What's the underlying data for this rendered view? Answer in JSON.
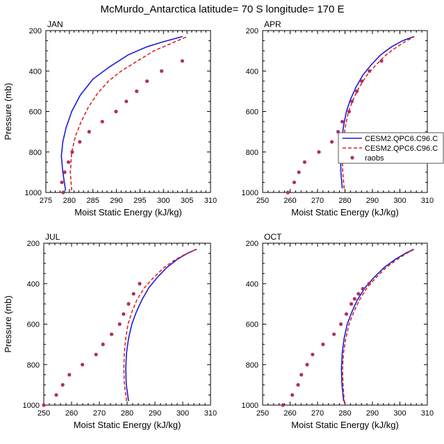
{
  "title": "McMurdo_Antarctica  latitude= 70 S longitude= 170 E",
  "colors": {
    "model_a": "#1a1adb",
    "model_b": "#e02020",
    "raobs": "#b03060",
    "axis": "#000000",
    "legend_border": "#555555"
  },
  "legend": [
    {
      "label": "CESM2.QPC6.C96.C",
      "style": "solid",
      "color": "#1a1adb"
    },
    {
      "label": "CESM2.QPC6.C96.C",
      "style": "dashed",
      "color": "#e02020"
    },
    {
      "label": "raobs",
      "style": "marker",
      "color": "#b03060"
    }
  ],
  "chart_data": [
    {
      "type": "line",
      "panel": "JAN",
      "title": "JAN",
      "xlabel": "Moist Static Energy (kJ/kg)",
      "ylabel": "Pressure (mb)",
      "xlim": [
        275,
        310
      ],
      "ylim": [
        1000,
        200
      ],
      "xticks": [
        275,
        280,
        285,
        290,
        295,
        300,
        305,
        310
      ],
      "yticks": [
        200,
        400,
        600,
        800,
        1000
      ],
      "series": [
        {
          "name": "CESM2.QPC6.C96.C",
          "style": "solid",
          "color": "#1a1adb",
          "x": [
            279.2,
            278.6,
            278.3,
            278.6,
            279.3,
            280.5,
            282.3,
            285.0,
            288.5,
            292.5,
            296.5,
            300.0,
            304.0
          ],
          "y": [
            990,
            900,
            820,
            750,
            680,
            600,
            520,
            440,
            380,
            320,
            280,
            255,
            230
          ]
        },
        {
          "name": "CESM2.QPC6.C96.C",
          "style": "dashed",
          "color": "#e02020",
          "x": [
            280.5,
            280.2,
            280.5,
            281.3,
            282.5,
            284.0,
            286.0,
            288.3,
            291.0,
            294.5,
            298.0,
            302.0,
            305.0
          ],
          "y": [
            990,
            900,
            800,
            720,
            650,
            580,
            510,
            450,
            400,
            350,
            300,
            260,
            230
          ]
        },
        {
          "name": "raobs",
          "style": "marker",
          "color": "#b03060",
          "x": [
            278.7,
            278.4,
            279.0,
            279.8,
            280.6,
            282.2,
            284.2,
            287.0,
            289.9,
            292.1,
            294.3,
            296.5,
            299.6,
            304.0
          ],
          "y": [
            1000,
            950,
            900,
            850,
            800,
            750,
            700,
            650,
            600,
            550,
            500,
            450,
            400,
            350
          ]
        }
      ]
    },
    {
      "type": "line",
      "panel": "APR",
      "title": "APR",
      "xlabel": "Moist Static Energy (kJ/kg)",
      "ylabel": "",
      "xlim": [
        250,
        310
      ],
      "ylim": [
        1000,
        200
      ],
      "xticks": [
        250,
        260,
        270,
        280,
        290,
        300,
        310
      ],
      "yticks": [
        200,
        400,
        600,
        800,
        1000
      ],
      "series": [
        {
          "name": "CESM2.QPC6.C96.C",
          "style": "solid",
          "color": "#1a1adb",
          "x": [
            279.0,
            278.5,
            278.4,
            278.8,
            279.5,
            280.5,
            282.0,
            284.0,
            286.5,
            289.5,
            293.0,
            297.0,
            301.0,
            305.0
          ],
          "y": [
            980,
            900,
            820,
            740,
            670,
            600,
            540,
            480,
            420,
            370,
            320,
            280,
            250,
            230
          ]
        },
        {
          "name": "CESM2.QPC6.C96.C",
          "style": "dashed",
          "color": "#e02020",
          "x": [
            279.7,
            279.2,
            279.0,
            279.4,
            280.2,
            281.3,
            283.0,
            285.2,
            288.0,
            291.3,
            295.0,
            299.0,
            302.5,
            305.3
          ],
          "y": [
            980,
            900,
            820,
            740,
            670,
            600,
            540,
            480,
            420,
            370,
            320,
            280,
            250,
            230
          ]
        },
        {
          "name": "raobs",
          "style": "marker",
          "color": "#b03060",
          "x": [
            259.2,
            261.5,
            263.2,
            265.3,
            270.5,
            275.2,
            277.5,
            279.0,
            281.5,
            282.5,
            284.3,
            286.1,
            288.9,
            293.3
          ],
          "y": [
            1000,
            950,
            900,
            850,
            800,
            750,
            700,
            650,
            600,
            550,
            500,
            450,
            400,
            350
          ]
        }
      ]
    },
    {
      "type": "line",
      "panel": "JUL",
      "title": "JUL",
      "xlabel": "Moist Static Energy (kJ/kg)",
      "ylabel": "Pressure (mb)",
      "xlim": [
        250,
        310
      ],
      "ylim": [
        1000,
        200
      ],
      "xticks": [
        250,
        260,
        270,
        280,
        290,
        300,
        310
      ],
      "yticks": [
        200,
        400,
        600,
        800,
        1000
      ],
      "series": [
        {
          "name": "CESM2.QPC6.C96.C",
          "style": "solid",
          "color": "#1a1adb",
          "x": [
            280.5,
            279.7,
            279.5,
            279.8,
            280.5,
            281.7,
            283.3,
            285.3,
            287.8,
            290.8,
            294.3,
            298.0,
            301.7,
            305.0
          ],
          "y": [
            980,
            900,
            820,
            740,
            670,
            600,
            540,
            480,
            420,
            370,
            320,
            280,
            250,
            230
          ]
        },
        {
          "name": "CESM2.QPC6.C96.C",
          "style": "dashed",
          "color": "#e02020",
          "x": [
            279.8,
            279.0,
            278.8,
            279.0,
            279.5,
            280.3,
            281.7,
            283.5,
            286.2,
            289.5,
            293.3,
            297.5,
            301.5,
            305.0
          ],
          "y": [
            980,
            900,
            820,
            740,
            670,
            600,
            540,
            480,
            420,
            370,
            320,
            280,
            250,
            230
          ]
        },
        {
          "name": "raobs",
          "style": "marker",
          "color": "#b03060",
          "x": [
            250.0,
            254.5,
            256.8,
            259.2,
            263.9,
            268.8,
            271.3,
            274.4,
            277.3,
            278.7,
            280.5,
            282.3,
            284.5
          ],
          "y": [
            1000,
            950,
            900,
            850,
            800,
            750,
            700,
            650,
            600,
            550,
            500,
            450,
            400
          ]
        }
      ]
    },
    {
      "type": "line",
      "panel": "OCT",
      "title": "OCT",
      "xlabel": "Moist Static Energy (kJ/kg)",
      "ylabel": "",
      "xlim": [
        250,
        310
      ],
      "ylim": [
        1000,
        200
      ],
      "xticks": [
        250,
        260,
        270,
        280,
        290,
        300,
        310
      ],
      "yticks": [
        200,
        400,
        600,
        800,
        1000
      ],
      "series": [
        {
          "name": "CESM2.QPC6.C96.C",
          "style": "solid",
          "color": "#1a1adb",
          "x": [
            279.5,
            278.9,
            278.7,
            279.0,
            279.7,
            280.8,
            282.5,
            284.5,
            287.3,
            290.5,
            294.3,
            298.3,
            302.0,
            305.0
          ],
          "y": [
            980,
            900,
            820,
            740,
            670,
            600,
            540,
            480,
            420,
            370,
            320,
            280,
            250,
            230
          ]
        },
        {
          "name": "CESM2.QPC6.C96.C",
          "style": "dashed",
          "color": "#e02020",
          "x": [
            279.8,
            279.3,
            279.1,
            279.5,
            280.3,
            281.5,
            283.2,
            285.3,
            288.0,
            291.3,
            295.0,
            299.0,
            302.5,
            305.3
          ],
          "y": [
            990,
            900,
            820,
            740,
            670,
            600,
            540,
            480,
            420,
            370,
            320,
            280,
            250,
            230
          ]
        },
        {
          "name": "raobs",
          "style": "marker",
          "color": "#b03060",
          "x": [
            257.4,
            260.8,
            262.9,
            264.1,
            266.2,
            268.2,
            272.0,
            276.0,
            278.5,
            280.5,
            282.3,
            283.5,
            284.9,
            286.5,
            288.8
          ],
          "y": [
            1000,
            950,
            900,
            850,
            800,
            750,
            700,
            650,
            600,
            550,
            500,
            475,
            450,
            425,
            400
          ]
        }
      ]
    }
  ]
}
